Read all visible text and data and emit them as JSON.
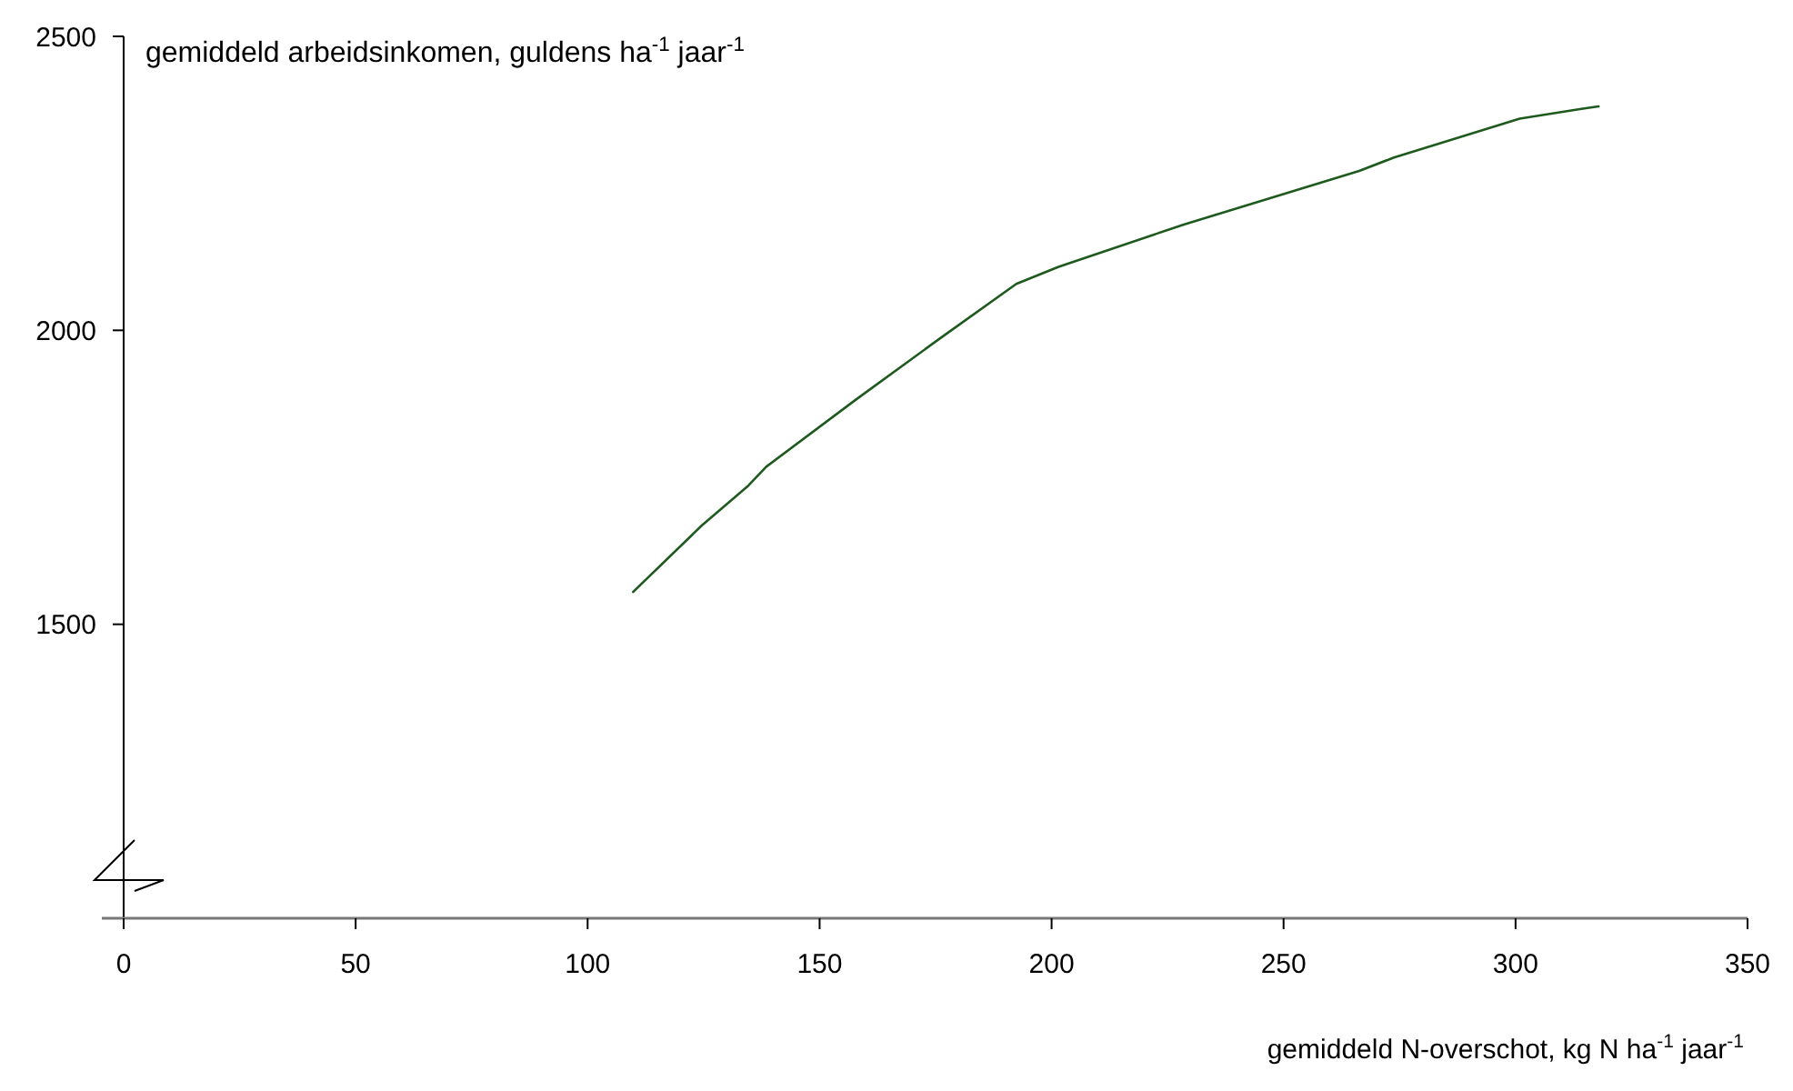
{
  "chart_data": {
    "type": "line",
    "ylabel": "gemiddeld arbeidsinkomen, guldens ha$^{-1}$ jaar$^{-1}$",
    "xlabel": "gemiddeld N-overschot, kg N ha$^{-1}$ jaar$^{-1}$",
    "xlim": [
      0,
      350
    ],
    "xticks": [
      0,
      50,
      100,
      150,
      200,
      250,
      300,
      350
    ],
    "ylim": [
      1000,
      2500
    ],
    "yticks": [
      1500,
      2000,
      2500
    ],
    "grid": false,
    "marker": "none",
    "line_style": "solid",
    "series": [
      {
        "color": "#1e5a1e",
        "x": [
          109.8,
          124.6,
          134.4,
          138.5,
          157.8,
          175.9,
          192.4,
          201.5,
          228.5,
          266.3,
          273.8,
          300.9,
          314.5,
          317.9
        ],
        "values": [
          1555,
          1668,
          1734,
          1768,
          1882,
          1986,
          2079,
          2108,
          2180,
          2271,
          2294,
          2360,
          2377,
          2381
        ]
      }
    ]
  }
}
